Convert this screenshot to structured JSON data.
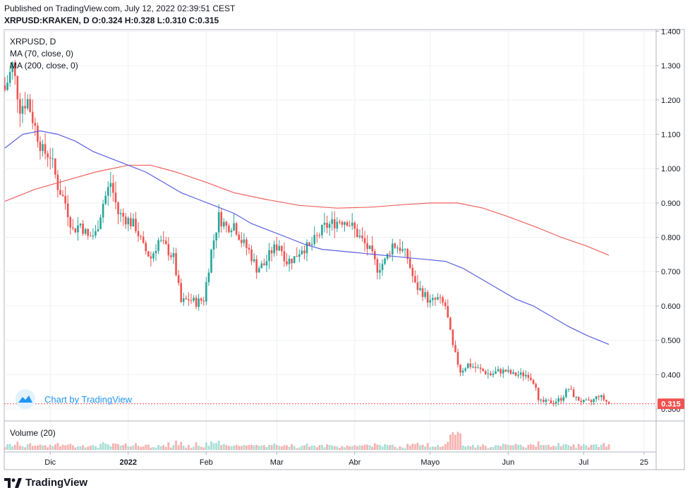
{
  "header": {
    "published": "Published on TradingView.com, July 12, 2022 02:39:51 CEST",
    "symbol": "XRPUSD:KRAKEN, D",
    "o_label": "O:",
    "o_value": "0.324",
    "h_label": "H:",
    "h_value": "0.328",
    "l_label": "L:",
    "l_value": "0.310",
    "c_label": "C:",
    "c_value": "0.315"
  },
  "legend": {
    "title": "XRPUSD, D",
    "ma70": "MA (70, close, 0)",
    "ma200": "MA (200, close, 0)"
  },
  "watermark": "Chart by TradingView",
  "footer_brand": "TradingView",
  "volume_label": "Volume (20)",
  "last_price_label": "0.315",
  "colors": {
    "up": "#26a69a",
    "down": "#ef5350",
    "ma70": "#5b5fe0",
    "ma200": "#f0625d",
    "grid": "#eef0f4",
    "axis_text": "#131722",
    "watermark": "#2196f3"
  },
  "chart_data": {
    "type": "candlestick",
    "x_start": "2021-11-13",
    "x_end": "2022-07-11",
    "y_range": [
      0.265,
      1.405
    ],
    "y_ticks": [
      "1.400",
      "1.300",
      "1.200",
      "1.100",
      "1.000",
      "0.900",
      "0.800",
      "0.700",
      "0.600",
      "0.500",
      "0.400",
      "0.300"
    ],
    "x_ticks": [
      {
        "label": "Dic",
        "date": "2021-12-01",
        "bold": false
      },
      {
        "label": "2022",
        "date": "2022-01-01",
        "bold": true
      },
      {
        "label": "Feb",
        "date": "2022-02-01",
        "bold": false
      },
      {
        "label": "Mar",
        "date": "2022-03-01",
        "bold": false
      },
      {
        "label": "Abr",
        "date": "2022-04-01",
        "bold": false
      },
      {
        "label": "Mayo",
        "date": "2022-05-01",
        "bold": false
      },
      {
        "label": "Jun",
        "date": "2022-06-01",
        "bold": false
      },
      {
        "label": "Jul",
        "date": "2022-07-01",
        "bold": false
      },
      {
        "label": "25",
        "date": "2022-07-25",
        "bold": false
      }
    ],
    "close_anchors": [
      [
        "2021-11-13",
        1.23
      ],
      [
        "2021-11-16",
        1.3
      ],
      [
        "2021-11-19",
        1.18
      ],
      [
        "2021-11-22",
        1.2
      ],
      [
        "2021-11-25",
        1.12
      ],
      [
        "2021-11-28",
        1.05
      ],
      [
        "2021-12-01",
        1.04
      ],
      [
        "2021-12-04",
        0.95
      ],
      [
        "2021-12-07",
        0.9
      ],
      [
        "2021-12-10",
        0.82
      ],
      [
        "2021-12-13",
        0.84
      ],
      [
        "2021-12-16",
        0.8
      ],
      [
        "2021-12-19",
        0.81
      ],
      [
        "2021-12-22",
        0.9
      ],
      [
        "2021-12-25",
        0.96
      ],
      [
        "2021-12-28",
        0.87
      ],
      [
        "2022-01-01",
        0.85
      ],
      [
        "2022-01-04",
        0.83
      ],
      [
        "2022-01-07",
        0.77
      ],
      [
        "2022-01-10",
        0.74
      ],
      [
        "2022-01-13",
        0.79
      ],
      [
        "2022-01-16",
        0.77
      ],
      [
        "2022-01-19",
        0.74
      ],
      [
        "2022-01-22",
        0.61
      ],
      [
        "2022-01-25",
        0.62
      ],
      [
        "2022-01-28",
        0.61
      ],
      [
        "2022-01-31",
        0.62
      ],
      [
        "2022-02-03",
        0.76
      ],
      [
        "2022-02-06",
        0.86
      ],
      [
        "2022-02-09",
        0.83
      ],
      [
        "2022-02-12",
        0.84
      ],
      [
        "2022-02-15",
        0.79
      ],
      [
        "2022-02-18",
        0.76
      ],
      [
        "2022-02-21",
        0.71
      ],
      [
        "2022-02-24",
        0.72
      ],
      [
        "2022-02-27",
        0.76
      ],
      [
        "2022-03-02",
        0.78
      ],
      [
        "2022-03-05",
        0.73
      ],
      [
        "2022-03-08",
        0.74
      ],
      [
        "2022-03-11",
        0.77
      ],
      [
        "2022-03-14",
        0.77
      ],
      [
        "2022-03-17",
        0.8
      ],
      [
        "2022-03-20",
        0.83
      ],
      [
        "2022-03-23",
        0.84
      ],
      [
        "2022-03-26",
        0.85
      ],
      [
        "2022-03-29",
        0.85
      ],
      [
        "2022-04-01",
        0.82
      ],
      [
        "2022-04-04",
        0.79
      ],
      [
        "2022-04-07",
        0.76
      ],
      [
        "2022-04-10",
        0.71
      ],
      [
        "2022-04-13",
        0.73
      ],
      [
        "2022-04-16",
        0.78
      ],
      [
        "2022-04-19",
        0.77
      ],
      [
        "2022-04-22",
        0.74
      ],
      [
        "2022-04-25",
        0.66
      ],
      [
        "2022-04-28",
        0.64
      ],
      [
        "2022-05-01",
        0.61
      ],
      [
        "2022-05-04",
        0.62
      ],
      [
        "2022-05-07",
        0.6
      ],
      [
        "2022-05-10",
        0.48
      ],
      [
        "2022-05-13",
        0.41
      ],
      [
        "2022-05-16",
        0.43
      ],
      [
        "2022-05-19",
        0.42
      ],
      [
        "2022-05-22",
        0.41
      ],
      [
        "2022-05-25",
        0.4
      ],
      [
        "2022-05-28",
        0.41
      ],
      [
        "2022-05-31",
        0.41
      ],
      [
        "2022-06-03",
        0.4
      ],
      [
        "2022-06-06",
        0.4
      ],
      [
        "2022-06-09",
        0.4
      ],
      [
        "2022-06-12",
        0.37
      ],
      [
        "2022-06-13",
        0.32
      ],
      [
        "2022-06-16",
        0.32
      ],
      [
        "2022-06-19",
        0.32
      ],
      [
        "2022-06-22",
        0.33
      ],
      [
        "2022-06-25",
        0.36
      ],
      [
        "2022-06-28",
        0.33
      ],
      [
        "2022-07-01",
        0.32
      ],
      [
        "2022-07-04",
        0.32
      ],
      [
        "2022-07-07",
        0.34
      ],
      [
        "2022-07-11",
        0.315
      ]
    ],
    "ma70": [
      [
        "2021-11-13",
        1.06
      ],
      [
        "2021-11-20",
        1.1
      ],
      [
        "2021-11-27",
        1.11
      ],
      [
        "2021-12-04",
        1.1
      ],
      [
        "2021-12-11",
        1.08
      ],
      [
        "2021-12-18",
        1.05
      ],
      [
        "2021-12-25",
        1.03
      ],
      [
        "2022-01-01",
        1.01
      ],
      [
        "2022-01-08",
        0.99
      ],
      [
        "2022-01-15",
        0.96
      ],
      [
        "2022-01-22",
        0.93
      ],
      [
        "2022-01-29",
        0.91
      ],
      [
        "2022-02-05",
        0.89
      ],
      [
        "2022-02-12",
        0.87
      ],
      [
        "2022-02-19",
        0.84
      ],
      [
        "2022-02-26",
        0.82
      ],
      [
        "2022-03-05",
        0.8
      ],
      [
        "2022-03-12",
        0.78
      ],
      [
        "2022-03-19",
        0.765
      ],
      [
        "2022-03-26",
        0.76
      ],
      [
        "2022-04-02",
        0.755
      ],
      [
        "2022-04-09",
        0.75
      ],
      [
        "2022-04-16",
        0.745
      ],
      [
        "2022-04-23",
        0.74
      ],
      [
        "2022-04-30",
        0.735
      ],
      [
        "2022-05-07",
        0.73
      ],
      [
        "2022-05-14",
        0.71
      ],
      [
        "2022-05-21",
        0.68
      ],
      [
        "2022-05-28",
        0.65
      ],
      [
        "2022-06-04",
        0.62
      ],
      [
        "2022-06-11",
        0.6
      ],
      [
        "2022-06-18",
        0.57
      ],
      [
        "2022-06-25",
        0.54
      ],
      [
        "2022-07-02",
        0.515
      ],
      [
        "2022-07-11",
        0.488
      ]
    ],
    "ma200": [
      [
        "2021-11-13",
        0.905
      ],
      [
        "2021-11-25",
        0.94
      ],
      [
        "2021-12-07",
        0.965
      ],
      [
        "2021-12-19",
        0.99
      ],
      [
        "2022-01-01",
        1.01
      ],
      [
        "2022-01-10",
        1.01
      ],
      [
        "2022-01-20",
        0.99
      ],
      [
        "2022-02-01",
        0.96
      ],
      [
        "2022-02-12",
        0.93
      ],
      [
        "2022-02-25",
        0.91
      ],
      [
        "2022-03-10",
        0.893
      ],
      [
        "2022-03-25",
        0.885
      ],
      [
        "2022-04-08",
        0.888
      ],
      [
        "2022-04-20",
        0.895
      ],
      [
        "2022-05-01",
        0.9
      ],
      [
        "2022-05-12",
        0.9
      ],
      [
        "2022-05-22",
        0.885
      ],
      [
        "2022-06-01",
        0.86
      ],
      [
        "2022-06-12",
        0.83
      ],
      [
        "2022-06-22",
        0.8
      ],
      [
        "2022-07-02",
        0.775
      ],
      [
        "2022-07-11",
        0.748
      ]
    ],
    "last_price": 0.315
  }
}
